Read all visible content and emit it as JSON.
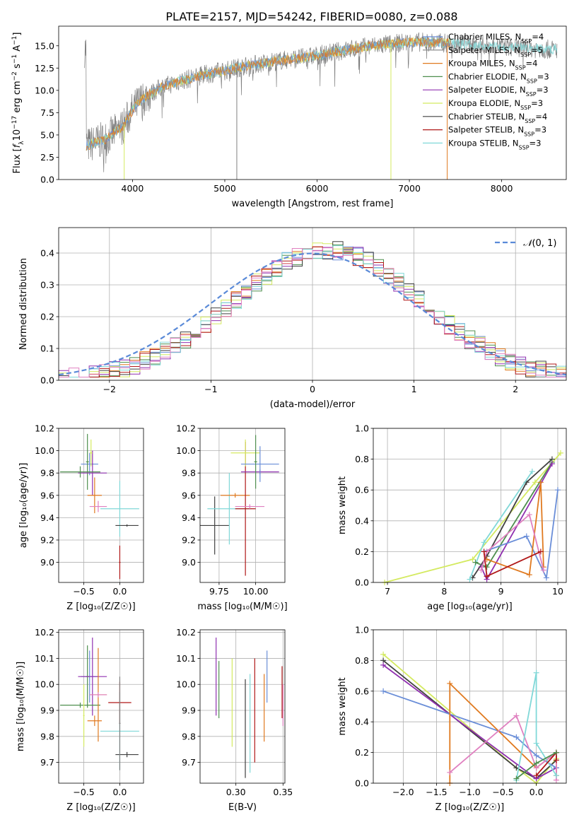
{
  "colors": {
    "chabrier_miles": "#6a8ed8",
    "salpeter_miles": "#808080",
    "kroupa_miles": "#e07a20",
    "chabrier_elodie": "#4f8f4f",
    "salpeter_elodie": "#9030b0",
    "kroupa_elodie": "#d4ea60",
    "chabrier_stelib": "#404040",
    "salpeter_stelib": "#b01818",
    "kroupa_stelib": "#80d8d8",
    "pink": "#e080c0",
    "normal": "#5a8ad8"
  },
  "chart_data": [
    {
      "id": "spectrum",
      "type": "line",
      "title": "PLATE=2157, MJD=54242, FIBERID=0080, z=0.088",
      "xlabel": "wavelength [Angstrom, rest frame]",
      "ylabel_parts": [
        "Flux [",
        "f",
        "λ",
        "10",
        "−17",
        " erg cm",
        "−2",
        " s",
        "−1",
        " A",
        "−1",
        "]"
      ],
      "xlim": [
        3200,
        8700
      ],
      "ylim": [
        0,
        17.2
      ],
      "xticks": [
        4000,
        5000,
        6000,
        7000,
        8000
      ],
      "yticks": [
        0.0,
        2.5,
        5.0,
        7.5,
        10.0,
        12.5,
        15.0
      ],
      "grid": false,
      "legend_position": "top-right",
      "legend": [
        {
          "name": "Chabrier MILES",
          "n": "4",
          "color_key": "chabrier_miles"
        },
        {
          "name": "Salpeter MILES",
          "n": "5",
          "color_key": "salpeter_miles"
        },
        {
          "name": "Kroupa MILES",
          "n": "4",
          "color_key": "kroupa_miles"
        },
        {
          "name": "Chabrier ELODIE",
          "n": "3",
          "color_key": "chabrier_elodie"
        },
        {
          "name": "Salpeter ELODIE",
          "n": "3",
          "color_key": "salpeter_elodie"
        },
        {
          "name": "Kroupa ELODIE",
          "n": "3",
          "color_key": "kroupa_elodie"
        },
        {
          "name": "Chabrier STELIB",
          "n": "4",
          "color_key": "chabrier_stelib"
        },
        {
          "name": "Salpeter STELIB",
          "n": "3",
          "color_key": "salpeter_stelib"
        },
        {
          "name": "Kroupa STELIB",
          "n": "3",
          "color_key": "kroupa_stelib"
        }
      ],
      "continuum": [
        [
          3500,
          3.8
        ],
        [
          3700,
          4.5
        ],
        [
          3900,
          6.0
        ],
        [
          4000,
          7.8
        ],
        [
          4100,
          9.0
        ],
        [
          4300,
          10.3
        ],
        [
          4500,
          11.0
        ],
        [
          4800,
          11.8
        ],
        [
          5000,
          12.2
        ],
        [
          5200,
          12.7
        ],
        [
          5500,
          13.2
        ],
        [
          5800,
          13.6
        ],
        [
          6000,
          13.9
        ],
        [
          6300,
          14.5
        ],
        [
          6600,
          15.0
        ],
        [
          6800,
          15.2
        ],
        [
          7000,
          15.4
        ],
        [
          7200,
          15.4
        ],
        [
          7400,
          15.3
        ],
        [
          7600,
          15.2
        ],
        [
          7900,
          15.0
        ],
        [
          8200,
          14.8
        ],
        [
          8500,
          14.6
        ]
      ],
      "spikes": [
        {
          "x": 5130,
          "color_key": "salpeter_miles"
        },
        {
          "x": 6800,
          "color_key": "kroupa_elodie"
        },
        {
          "x": 7410,
          "color_key": "kroupa_miles"
        },
        {
          "x": 3910,
          "color_key": "kroupa_elodie"
        }
      ]
    },
    {
      "id": "residuals",
      "type": "bar",
      "xlabel": "(data-model)/error",
      "ylabel": "Normed distribution",
      "xlim": [
        -2.5,
        2.5
      ],
      "ylim": [
        0,
        0.48
      ],
      "xticks": [
        -2,
        -1,
        0,
        1,
        2
      ],
      "yticks": [
        0.0,
        0.1,
        0.2,
        0.3,
        0.4
      ],
      "grid": true,
      "legend_position": "top-right",
      "normal_label": "(0, 1)",
      "normal_label_symbol": "𝒩",
      "bin_width": 0.1
    },
    {
      "id": "z_age",
      "type": "scatter",
      "xlabel": "Z [log₁₀(Z/Z☉)]",
      "ylabel": "age  [log₁₀(age/yr)]",
      "xlim": [
        -0.85,
        0.33
      ],
      "ylim": [
        8.82,
        10.2
      ],
      "xticks": [
        -0.5,
        0.0
      ],
      "xticklabels": [
        "−0.5",
        "0.0"
      ],
      "yticks": [
        9.0,
        9.2,
        9.4,
        9.6,
        9.8,
        10.0,
        10.2
      ],
      "grid": true,
      "points": [
        {
          "x": -0.42,
          "y": 9.88,
          "xerr": 0.12,
          "yerr": 0.1,
          "color_key": "chabrier_miles"
        },
        {
          "x": -0.45,
          "y": 9.9,
          "xerr": 0.02,
          "yerr": 0.25,
          "color_key": "chabrier_elodie"
        },
        {
          "x": -0.38,
          "y": 9.8,
          "xerr": 0.2,
          "yerr": 0.2,
          "color_key": "salpeter_elodie"
        },
        {
          "x": -0.55,
          "y": 9.81,
          "xerr": 0.28,
          "yerr": 0.05,
          "color_key": "chabrier_elodie"
        },
        {
          "x": -0.35,
          "y": 9.6,
          "xerr": 0.1,
          "yerr": 0.16,
          "color_key": "kroupa_miles"
        },
        {
          "x": -0.3,
          "y": 9.5,
          "xerr": 0.12,
          "yerr": 0.05,
          "color_key": "pink"
        },
        {
          "x": 0.0,
          "y": 9.48,
          "xerr": 0.27,
          "yerr": 0.25,
          "color_key": "kroupa_stelib"
        },
        {
          "x": 0.0,
          "y": 9.0,
          "xerr": 0.01,
          "yerr": 0.15,
          "color_key": "salpeter_stelib"
        },
        {
          "x": 0.1,
          "y": 9.33,
          "xerr": 0.16,
          "yerr": 0.01,
          "color_key": "chabrier_stelib"
        },
        {
          "x": -0.4,
          "y": 9.98,
          "xerr": 0.02,
          "yerr": 0.12,
          "color_key": "kroupa_elodie"
        }
      ]
    },
    {
      "id": "mass_age",
      "type": "scatter",
      "xlabel": "mass [log₁₀(M/M☉)]",
      "ylabel": "",
      "xlim": [
        9.62,
        10.2
      ],
      "ylim": [
        8.82,
        10.2
      ],
      "xticks": [
        9.75,
        10.0
      ],
      "xticklabels": [
        "9.75",
        "10.00"
      ],
      "yticks": [
        9.0,
        9.2,
        9.4,
        9.6,
        9.8,
        10.0,
        10.2
      ],
      "grid": true,
      "points": [
        {
          "x": 9.72,
          "y": 9.33,
          "xerr": 0.1,
          "yerr": 0.26,
          "color_key": "chabrier_stelib"
        },
        {
          "x": 9.82,
          "y": 9.48,
          "xerr": 0.15,
          "yerr": 0.32,
          "color_key": "kroupa_stelib"
        },
        {
          "x": 9.86,
          "y": 9.6,
          "xerr": 0.1,
          "yerr": 0.02,
          "color_key": "kroupa_miles"
        },
        {
          "x": 9.93,
          "y": 9.48,
          "xerr": 0.07,
          "yerr": 0.6,
          "color_key": "salpeter_stelib"
        },
        {
          "x": 9.93,
          "y": 9.98,
          "xerr": 0.1,
          "yerr": 0.12,
          "color_key": "kroupa_elodie"
        },
        {
          "x": 9.96,
          "y": 9.5,
          "xerr": 0.1,
          "yerr": 0.02,
          "color_key": "pink"
        },
        {
          "x": 10.03,
          "y": 9.81,
          "xerr": 0.13,
          "yerr": 0.02,
          "color_key": "salpeter_elodie"
        },
        {
          "x": 10.03,
          "y": 9.88,
          "xerr": 0.13,
          "yerr": 0.16,
          "color_key": "chabrier_miles"
        },
        {
          "x": 10.0,
          "y": 9.9,
          "xerr": 0.01,
          "yerr": 0.24,
          "color_key": "chabrier_elodie"
        }
      ]
    },
    {
      "id": "age_weight",
      "type": "line",
      "xlabel": "age  [log₁₀(age/yr)]",
      "ylabel": "mass weight",
      "xlim": [
        6.75,
        10.15
      ],
      "ylim": [
        0,
        1.0
      ],
      "xticks": [
        7,
        8,
        9,
        10
      ],
      "yticks": [
        0.0,
        0.2,
        0.4,
        0.6,
        0.8,
        1.0
      ],
      "grid": true,
      "series": [
        {
          "color_key": "kroupa_elodie",
          "x": [
            6.95,
            8.5,
            9.6,
            10.05
          ],
          "y": [
            0.0,
            0.15,
            0.65,
            0.84
          ]
        },
        {
          "color_key": "chabrier_stelib",
          "x": [
            8.5,
            8.75,
            9.45,
            9.9
          ],
          "y": [
            0.03,
            0.17,
            0.65,
            0.8
          ]
        },
        {
          "color_key": "kroupa_stelib",
          "x": [
            8.45,
            8.7,
            9.55
          ],
          "y": [
            0.02,
            0.26,
            0.72
          ]
        },
        {
          "color_key": "chabrier_elodie",
          "x": [
            8.55,
            8.75,
            9.9
          ],
          "y": [
            0.13,
            0.1,
            0.78
          ]
        },
        {
          "color_key": "salpeter_elodie",
          "x": [
            8.65,
            8.75,
            9.9
          ],
          "y": [
            0.1,
            0.02,
            0.77
          ]
        },
        {
          "color_key": "chabrier_miles",
          "x": [
            8.7,
            9.45,
            9.8,
            10.0
          ],
          "y": [
            0.2,
            0.3,
            0.03,
            0.6
          ]
        },
        {
          "color_key": "kroupa_miles",
          "x": [
            8.75,
            9.5,
            9.7,
            9.75
          ],
          "y": [
            0.15,
            0.05,
            0.65,
            0.1
          ]
        },
        {
          "color_key": "pink",
          "x": [
            8.65,
            8.75,
            9.5,
            9.75
          ],
          "y": [
            0.08,
            0.2,
            0.44,
            0.08
          ]
        },
        {
          "color_key": "salpeter_stelib",
          "x": [
            8.7,
            8.75,
            9.7
          ],
          "y": [
            0.2,
            0.04,
            0.2
          ]
        }
      ]
    },
    {
      "id": "z_mass",
      "type": "scatter",
      "xlabel": "Z [log₁₀(Z/Z☉)]",
      "ylabel": "mass [log₁₀(M/M☉)]",
      "xlim": [
        -0.85,
        0.33
      ],
      "ylim": [
        9.62,
        10.21
      ],
      "xticks": [
        -0.5,
        0.0
      ],
      "xticklabels": [
        "−0.5",
        "0.0"
      ],
      "yticks": [
        9.7,
        9.8,
        9.9,
        10.0,
        10.1,
        10.2
      ],
      "grid": true,
      "points": [
        {
          "x": -0.42,
          "y": 10.03,
          "xerr": 0.12,
          "yerr": 0.1,
          "color_key": "chabrier_miles"
        },
        {
          "x": -0.45,
          "y": 10.03,
          "xerr": 0.02,
          "yerr": 0.12,
          "color_key": "chabrier_elodie"
        },
        {
          "x": -0.38,
          "y": 10.03,
          "xerr": 0.2,
          "yerr": 0.15,
          "color_key": "salpeter_elodie"
        },
        {
          "x": -0.55,
          "y": 9.92,
          "xerr": 0.28,
          "yerr": 0.01,
          "color_key": "chabrier_elodie"
        },
        {
          "x": -0.35,
          "y": 9.86,
          "xerr": 0.1,
          "yerr": 0.02,
          "color_key": "kroupa_miles"
        },
        {
          "x": -0.3,
          "y": 9.96,
          "xerr": 0.12,
          "yerr": 0.18,
          "color_key": "kroupa_miles"
        },
        {
          "x": -0.3,
          "y": 9.96,
          "xerr": 0.12,
          "yerr": 0.01,
          "color_key": "pink"
        },
        {
          "x": 0.0,
          "y": 9.82,
          "xerr": 0.27,
          "yerr": 0.15,
          "color_key": "kroupa_stelib"
        },
        {
          "x": 0.0,
          "y": 9.93,
          "xerr": 0.16,
          "yerr": 0.08,
          "color_key": "salpeter_stelib"
        },
        {
          "x": 0.1,
          "y": 9.73,
          "xerr": 0.16,
          "yerr": 0.01,
          "color_key": "chabrier_stelib"
        },
        {
          "x": -0.5,
          "y": 9.88,
          "xerr": 0.01,
          "yerr": 0.12,
          "color_key": "kroupa_elodie"
        },
        {
          "x": 0.0,
          "y": 9.85,
          "xerr": 0.01,
          "yerr": 0.18,
          "color_key": "salpeter_miles"
        }
      ]
    },
    {
      "id": "ebv_mass",
      "type": "scatter",
      "xlabel": "E(B-V)",
      "ylabel": "",
      "xlim": [
        0.262,
        0.352
      ],
      "ylim": [
        9.62,
        10.21
      ],
      "xticks": [
        0.3,
        0.35
      ],
      "xticklabels": [
        "0.30",
        "0.35"
      ],
      "yticks": [
        9.7,
        9.8,
        9.9,
        10.0,
        10.1,
        10.2
      ],
      "grid": true,
      "points": [
        {
          "x": 0.279,
          "y": 10.03,
          "xerr": 0.0,
          "yerr": 0.15,
          "color_key": "salpeter_elodie"
        },
        {
          "x": 0.282,
          "y": 9.98,
          "xerr": 0.0,
          "yerr": 0.11,
          "color_key": "chabrier_elodie"
        },
        {
          "x": 0.296,
          "y": 9.93,
          "xerr": 0.0,
          "yerr": 0.17,
          "color_key": "kroupa_elodie"
        },
        {
          "x": 0.31,
          "y": 9.83,
          "xerr": 0.0,
          "yerr": 0.19,
          "color_key": "chabrier_stelib"
        },
        {
          "x": 0.315,
          "y": 9.85,
          "xerr": 0.0,
          "yerr": 0.19,
          "color_key": "kroupa_stelib"
        },
        {
          "x": 0.32,
          "y": 9.9,
          "xerr": 0.0,
          "yerr": 0.2,
          "color_key": "salpeter_stelib"
        },
        {
          "x": 0.33,
          "y": 9.91,
          "xerr": 0.0,
          "yerr": 0.13,
          "color_key": "kroupa_miles"
        },
        {
          "x": 0.333,
          "y": 10.03,
          "xerr": 0.0,
          "yerr": 0.1,
          "color_key": "chabrier_miles"
        },
        {
          "x": 0.35,
          "y": 9.92,
          "xerr": 0.0,
          "yerr": 0.08,
          "color_key": "pink"
        },
        {
          "x": 0.349,
          "y": 9.97,
          "xerr": 0.0,
          "yerr": 0.1,
          "color_key": "salpeter_stelib"
        }
      ]
    },
    {
      "id": "z_weight",
      "type": "line",
      "xlabel": "Z [log₁₀(Z/Z☉)]",
      "ylabel": "mass weight",
      "xlim": [
        -2.45,
        0.45
      ],
      "ylim": [
        0,
        1.0
      ],
      "xticks": [
        -2.0,
        -1.5,
        -1.0,
        -0.5,
        0.0
      ],
      "xticklabels": [
        "−2.0",
        "−1.5",
        "−1.0",
        "−0.5",
        "0.0"
      ],
      "yticks": [
        0.0,
        0.2,
        0.4,
        0.6,
        0.8,
        1.0
      ],
      "grid": true,
      "series": [
        {
          "color_key": "kroupa_elodie",
          "x": [
            -2.3,
            -0.3,
            0.0,
            0.3
          ],
          "y": [
            0.84,
            0.1,
            0.0,
            0.16
          ]
        },
        {
          "color_key": "chabrier_stelib",
          "x": [
            -2.3,
            -0.3,
            0.0,
            0.3
          ],
          "y": [
            0.8,
            0.1,
            0.03,
            0.15
          ]
        },
        {
          "color_key": "salpeter_elodie",
          "x": [
            -2.3,
            0.0,
            0.3
          ],
          "y": [
            0.77,
            0.03,
            0.1
          ]
        },
        {
          "color_key": "chabrier_miles",
          "x": [
            -2.3,
            -0.3,
            0.0,
            0.3
          ],
          "y": [
            0.6,
            0.3,
            0.18,
            0.1
          ]
        },
        {
          "color_key": "kroupa_miles",
          "x": [
            -1.3,
            -1.3,
            0.0,
            0.3,
            0.3
          ],
          "y": [
            0.0,
            0.65,
            0.1,
            0.2,
            0.05
          ]
        },
        {
          "color_key": "pink",
          "x": [
            -1.3,
            -0.3,
            0.0,
            0.3,
            0.3
          ],
          "y": [
            0.07,
            0.44,
            0.1,
            0.2,
            0.02
          ]
        },
        {
          "color_key": "kroupa_stelib",
          "x": [
            -0.3,
            0.0,
            0.0,
            0.3
          ],
          "y": [
            0.02,
            0.72,
            0.26,
            0.05
          ]
        },
        {
          "color_key": "salpeter_stelib",
          "x": [
            0.0,
            0.3,
            0.3
          ],
          "y": [
            0.05,
            0.2,
            0.15
          ]
        },
        {
          "color_key": "chabrier_elodie",
          "x": [
            -0.3,
            0.0,
            0.3
          ],
          "y": [
            0.03,
            0.13,
            0.2
          ]
        }
      ]
    }
  ]
}
